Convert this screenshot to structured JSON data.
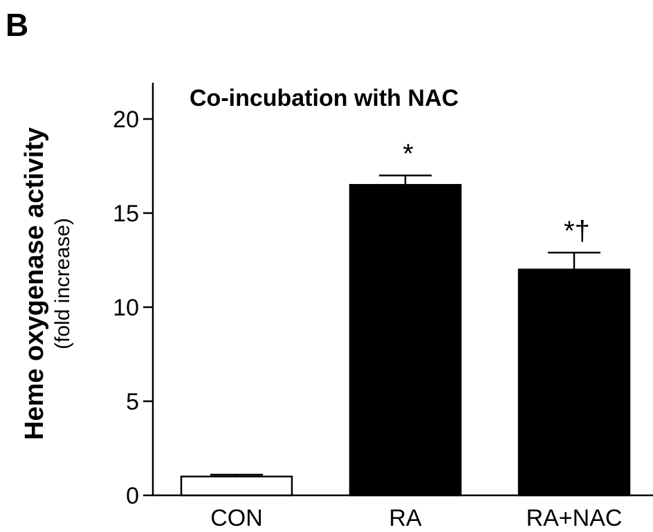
{
  "panel_label": "B",
  "chart_data": {
    "type": "bar",
    "title": "Co-incubation with NAC",
    "ylabel": "Heme oxygenase activity",
    "ylabel_sub": "(fold increase)",
    "xlabel": "",
    "categories": [
      "CON",
      "RA",
      "RA+NAC"
    ],
    "values": [
      1.0,
      16.5,
      12.0
    ],
    "errors": [
      0.1,
      0.5,
      0.9
    ],
    "annotations": [
      "",
      "*",
      "*†"
    ],
    "bar_colors": [
      "#ffffff",
      "#000000",
      "#000000"
    ],
    "ylim": [
      0,
      22
    ],
    "yticks": [
      0,
      5,
      10,
      15,
      20
    ],
    "grid": false,
    "legend": "none"
  }
}
